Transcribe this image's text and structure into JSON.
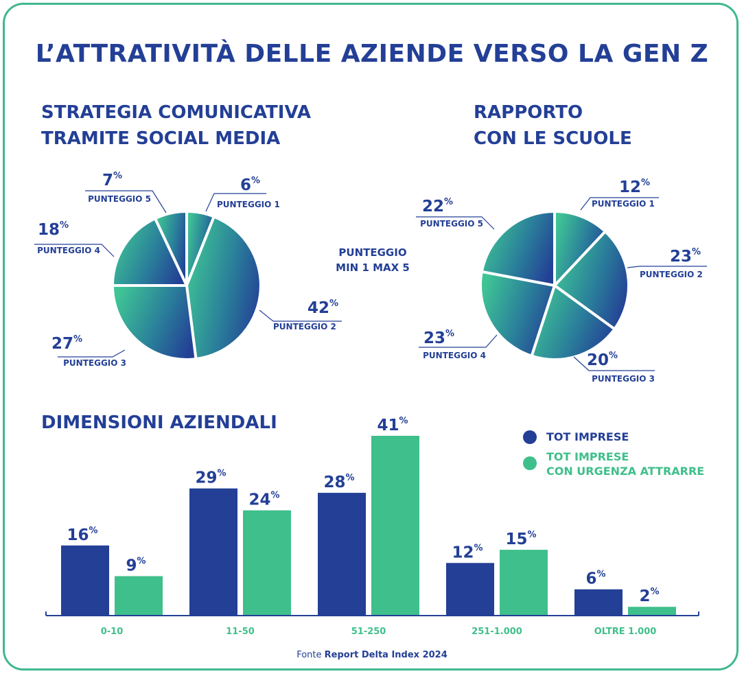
{
  "title": "L’ATTRATIVITÀ DELLE AZIENDE VERSO LA GEN Z",
  "scale_note": "PUNTEGGIO\nMIN 1 MAX 5",
  "colors": {
    "blue": "#233f96",
    "green": "#3fbf8b",
    "frame": "#3fb88d"
  },
  "source": {
    "prefix": "Fonte",
    "name": "Report Delta Index 2024"
  },
  "chart_data": [
    {
      "type": "pie",
      "title": "STRATEGIA COMUNICATIVA\nTRAMITE SOCIAL MEDIA",
      "slices": [
        {
          "label": "PUNTEGGIO 1",
          "value": 6
        },
        {
          "label": "PUNTEGGIO 2",
          "value": 42
        },
        {
          "label": "PUNTEGGIO 3",
          "value": 27
        },
        {
          "label": "PUNTEGGIO 4",
          "value": 18
        },
        {
          "label": "PUNTEGGIO 5",
          "value": 7
        }
      ],
      "unit": "%"
    },
    {
      "type": "pie",
      "title": "RAPPORTO\nCON LE SCUOLE",
      "slices": [
        {
          "label": "PUNTEGGIO 1",
          "value": 12
        },
        {
          "label": "PUNTEGGIO 2",
          "value": 23
        },
        {
          "label": "PUNTEGGIO 3",
          "value": 20
        },
        {
          "label": "PUNTEGGIO 4",
          "value": 23
        },
        {
          "label": "PUNTEGGIO 5",
          "value": 22
        }
      ],
      "unit": "%"
    },
    {
      "type": "bar",
      "title": "DIMENSIONI AZIENDALI",
      "categories": [
        "0-10",
        "11-50",
        "51-250",
        "251-1.000",
        "OLTRE 1.000"
      ],
      "series": [
        {
          "name": "TOT IMPRESE",
          "values": [
            16,
            29,
            28,
            12,
            6
          ],
          "color": "#233f96"
        },
        {
          "name": "TOT IMPRESE\nCON URGENZA ATTRARRE",
          "values": [
            9,
            24,
            41,
            15,
            2
          ],
          "color": "#3fbf8b"
        }
      ],
      "unit": "%",
      "ylim": [
        0,
        41
      ],
      "legend": "top-right",
      "grid": false
    }
  ]
}
